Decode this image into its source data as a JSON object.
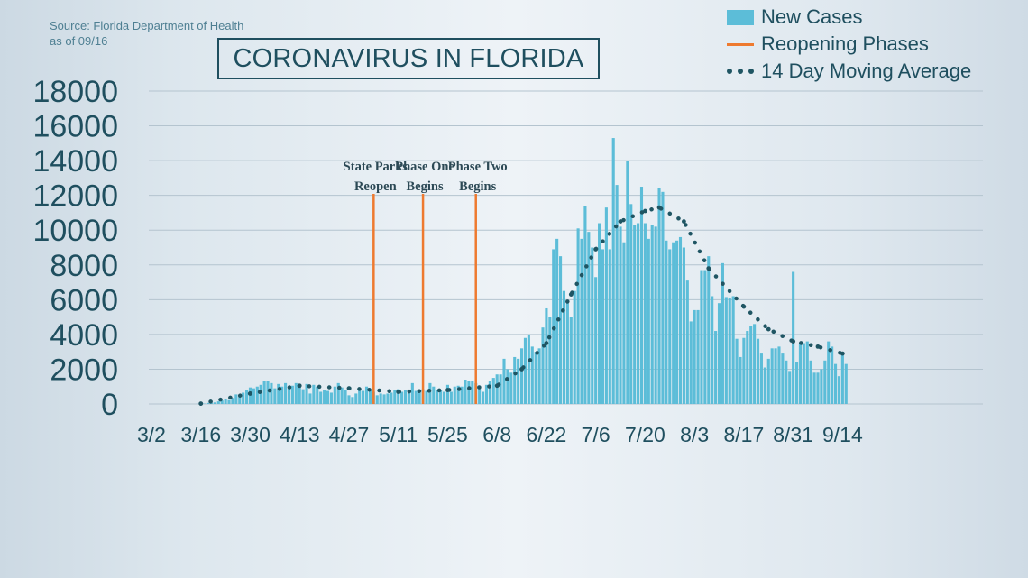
{
  "source": {
    "line1": "Source: Florida Department of Health",
    "line2": "as of 09/16"
  },
  "title": "CORONAVIRUS IN FLORIDA",
  "legend": {
    "new_cases": "New Cases",
    "reopening": "Reopening Phases",
    "moving_avg": "14 Day Moving Average"
  },
  "colors": {
    "bars": "#5cbdd8",
    "reopening": "#ee7a2f",
    "moving_avg": "#1f5563",
    "text": "#1f4f5f",
    "grid": "#b4c4cf"
  },
  "chart_data": {
    "type": "bar",
    "title": "CORONAVIRUS IN FLORIDA",
    "ylim": [
      0,
      18000
    ],
    "y_ticks": [
      "0",
      "2000",
      "4000",
      "6000",
      "8000",
      "10000",
      "12000",
      "14000",
      "16000",
      "18000"
    ],
    "x_tick_labels": [
      "3/2",
      "3/16",
      "3/30",
      "4/13",
      "4/27",
      "5/11",
      "5/25",
      "6/8",
      "6/22",
      "7/6",
      "7/20",
      "8/3",
      "8/17",
      "8/31",
      "9/14"
    ],
    "grid": "horizontal",
    "x_start_date": "3/2",
    "legend_position": "top-right",
    "reopening_phases": [
      {
        "label_lines": [
          "State Parks",
          "Reopen"
        ],
        "date": "5/4"
      },
      {
        "label_lines": [
          "Phase One",
          "Begins"
        ],
        "date": "5/18"
      },
      {
        "label_lines": [
          "Phase Two",
          "Begins"
        ],
        "date": "6/2"
      }
    ],
    "series": [
      {
        "name": "New Cases",
        "kind": "bar",
        "start_date": "3/2",
        "values": [
          0,
          0,
          0,
          0,
          0,
          0,
          0,
          0,
          0,
          0,
          0,
          0,
          0,
          5,
          10,
          20,
          60,
          60,
          90,
          150,
          200,
          280,
          220,
          350,
          550,
          500,
          650,
          800,
          950,
          900,
          1000,
          1100,
          1300,
          1300,
          1200,
          900,
          1150,
          1000,
          1200,
          900,
          1050,
          1200,
          1000,
          850,
          1150,
          600,
          1100,
          1000,
          700,
          800,
          750,
          650,
          1000,
          1200,
          950,
          800,
          500,
          400,
          600,
          800,
          750,
          1000,
          800,
          700,
          500,
          600,
          550,
          600,
          650,
          800,
          850,
          700,
          800,
          650,
          1200,
          750,
          650,
          850,
          750,
          1200,
          1000,
          800,
          800,
          700,
          1100,
          700,
          1000,
          1050,
          1000,
          1400,
          1300,
          1350,
          1200,
          1050,
          700,
          1100,
          1300,
          1500,
          1700,
          1700,
          2600,
          2000,
          1800,
          2700,
          2600,
          3200,
          3800,
          4000,
          3300,
          3000,
          3200,
          4400,
          5500,
          5000,
          8900,
          9500,
          8500,
          6500,
          5800,
          5000,
          6500,
          10100,
          9500,
          11400,
          9900,
          9000,
          7300,
          10400,
          8900,
          11300,
          8900,
          15300,
          12600,
          10200,
          9300,
          14000,
          11500,
          10300,
          10400,
          12500,
          10400,
          9500,
          10300,
          10200,
          12400,
          12200,
          9400,
          8900,
          9300,
          9400,
          9600,
          9000,
          7100,
          4750,
          5400,
          5400,
          7700,
          7700,
          8500,
          6200,
          4200,
          5800,
          8100,
          6150,
          6100,
          6200,
          3750,
          2700,
          3800,
          4200,
          4500,
          4600,
          3750,
          2900,
          2100,
          2600,
          3200,
          3200,
          3300,
          2900,
          2500,
          1900,
          7600,
          2400,
          3500,
          3500,
          3600,
          2500,
          1800,
          1800,
          2000,
          2500,
          3600,
          3300,
          2300,
          1600,
          3000,
          2300
        ]
      },
      {
        "name": "14 Day Moving Average",
        "kind": "dotted-line",
        "points": [
          {
            "date": "3/16",
            "value": 20
          },
          {
            "date": "3/30",
            "value": 600
          },
          {
            "date": "4/13",
            "value": 1050
          },
          {
            "date": "4/27",
            "value": 900
          },
          {
            "date": "5/11",
            "value": 700
          },
          {
            "date": "5/25",
            "value": 800
          },
          {
            "date": "6/8",
            "value": 1050
          },
          {
            "date": "6/15",
            "value": 2000
          },
          {
            "date": "6/22",
            "value": 3500
          },
          {
            "date": "6/29",
            "value": 6300
          },
          {
            "date": "7/6",
            "value": 8900
          },
          {
            "date": "7/13",
            "value": 10500
          },
          {
            "date": "7/20",
            "value": 11100
          },
          {
            "date": "7/24",
            "value": 11300
          },
          {
            "date": "7/31",
            "value": 10500
          },
          {
            "date": "8/7",
            "value": 7800
          },
          {
            "date": "8/17",
            "value": 5600
          },
          {
            "date": "8/24",
            "value": 4300
          },
          {
            "date": "8/31",
            "value": 3600
          },
          {
            "date": "9/7",
            "value": 3300
          },
          {
            "date": "9/14",
            "value": 2900
          }
        ]
      }
    ]
  }
}
